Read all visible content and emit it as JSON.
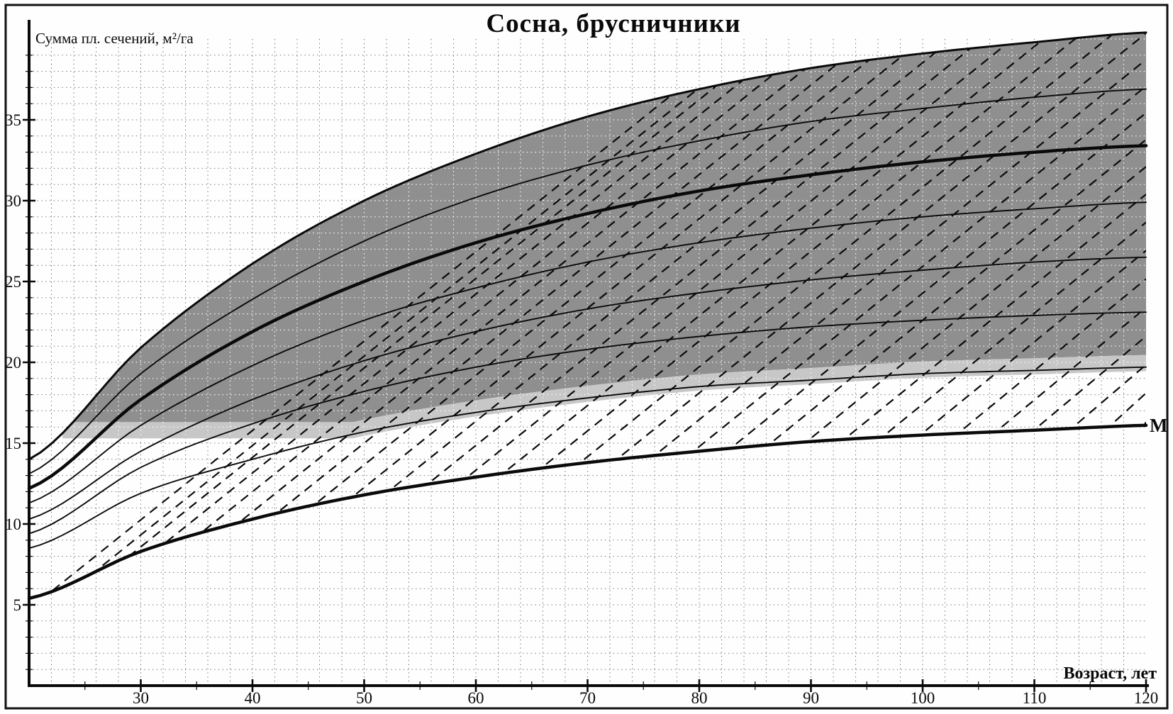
{
  "figure": {
    "title": "Сосна, брусничники",
    "y_axis_label": "Сумма пл. сечений, м²/га",
    "x_axis_label": "Возраст, лет",
    "m_curve_label": "М"
  },
  "chart_data": {
    "type": "line",
    "title": "Сосна, брусничники",
    "xlabel": "Возраст, лет",
    "ylabel": "Сумма пл. сечений, м²/га",
    "xlim": [
      20,
      120
    ],
    "ylim": [
      0,
      40.5
    ],
    "x_ticks": [
      30,
      40,
      50,
      60,
      70,
      80,
      90,
      100,
      110,
      120
    ],
    "x_minor_tick_step": 5,
    "y_ticks": [
      5,
      10,
      15,
      20,
      25,
      30,
      35
    ],
    "y_minor_tick_step": 1,
    "grid": {
      "style": "dotted",
      "x_step_years": 2,
      "y_step_units": 1,
      "on": true
    },
    "ages": [
      20,
      30,
      40,
      50,
      60,
      70,
      80,
      90,
      100,
      110,
      120
    ],
    "series": [
      {
        "name": "basal-area-curve-1-upper-boundary",
        "line": "solid",
        "weight": "medium",
        "values": [
          14.0,
          20.9,
          26.1,
          30.0,
          32.9,
          35.2,
          36.9,
          38.2,
          39.1,
          39.8,
          40.4
        ]
      },
      {
        "name": "basal-area-curve-2",
        "line": "solid",
        "weight": "thin",
        "values": [
          13.1,
          19.3,
          23.9,
          27.5,
          30.2,
          32.2,
          33.7,
          34.9,
          35.7,
          36.4,
          36.9
        ]
      },
      {
        "name": "basal-area-curve-3-bold",
        "line": "solid",
        "weight": "bold",
        "values": [
          12.2,
          17.7,
          21.9,
          25.0,
          27.4,
          29.2,
          30.6,
          31.6,
          32.4,
          33.0,
          33.4
        ]
      },
      {
        "name": "basal-area-curve-4",
        "line": "solid",
        "weight": "thin",
        "values": [
          11.3,
          16.1,
          19.8,
          22.6,
          24.6,
          26.2,
          27.4,
          28.3,
          29.0,
          29.5,
          29.9
        ]
      },
      {
        "name": "basal-area-curve-5",
        "line": "solid",
        "weight": "thin",
        "values": [
          10.3,
          14.5,
          17.7,
          20.1,
          21.9,
          23.3,
          24.3,
          25.1,
          25.7,
          26.2,
          26.5
        ]
      },
      {
        "name": "basal-area-curve-6",
        "line": "solid",
        "weight": "thin",
        "values": [
          9.4,
          13.5,
          16.2,
          18.2,
          19.7,
          20.8,
          21.6,
          22.2,
          22.6,
          22.9,
          23.1
        ]
      },
      {
        "name": "basal-area-curve-7-lowest",
        "line": "solid",
        "weight": "thin",
        "values": [
          8.5,
          11.9,
          14.0,
          15.7,
          16.9,
          17.8,
          18.5,
          18.9,
          19.3,
          19.5,
          19.7
        ]
      },
      {
        "name": "minimum-curve-M",
        "label": "М",
        "line": "solid",
        "weight": "bold",
        "values": [
          5.4,
          8.3,
          10.3,
          11.8,
          12.9,
          13.8,
          14.5,
          15.1,
          15.5,
          15.8,
          16.1
        ]
      }
    ],
    "dashed_guides": {
      "description": "family of dashed diagonal isolines rising left-to-right between curve M and the upper boundary curve",
      "slope_m2_per_year": 0.55,
      "first_age": 21,
      "age_spacing_years": 3.4,
      "count": 30
    },
    "shading": {
      "description": "zone between upper boundary curve and lowest fan curve (clipped below 15.3 m2/ha) shaded dark grey with a lighter ~1 m2/ha strip along its lower edge",
      "dark_grey": "#8f8f8f",
      "light_grey": "#c7c7c7",
      "lower_clip_value": 15.3,
      "light_strip_width_units": 1.0
    },
    "colors": {
      "ink": "#0a0a0a",
      "grid_dots": "#6e6e6e",
      "background": "#fefefe"
    }
  }
}
